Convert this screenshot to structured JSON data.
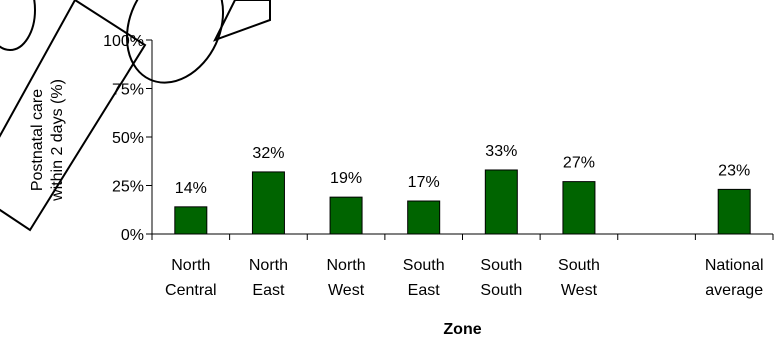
{
  "chart_data": {
    "type": "bar",
    "categories": [
      [
        "North",
        "Central"
      ],
      [
        "North",
        "East"
      ],
      [
        "North",
        "West"
      ],
      [
        "South",
        "East"
      ],
      [
        "South",
        "South"
      ],
      [
        "South",
        "West"
      ],
      [
        "",
        ""
      ],
      [
        "National",
        "average"
      ]
    ],
    "values": [
      14,
      32,
      19,
      17,
      33,
      27,
      null,
      23
    ],
    "data_labels": [
      "14%",
      "32%",
      "19%",
      "17%",
      "33%",
      "27%",
      "",
      "23%"
    ],
    "ylabel": [
      "Postnatal care",
      "within 2 days (%)"
    ],
    "xlabel": "Zone",
    "ylim": [
      0,
      100
    ],
    "yticks": [
      0,
      25,
      50,
      75,
      100
    ],
    "ytick_labels": [
      "0%",
      "25%",
      "50%",
      "75%",
      "100%"
    ],
    "bar_color": "#006400",
    "grid": false
  }
}
